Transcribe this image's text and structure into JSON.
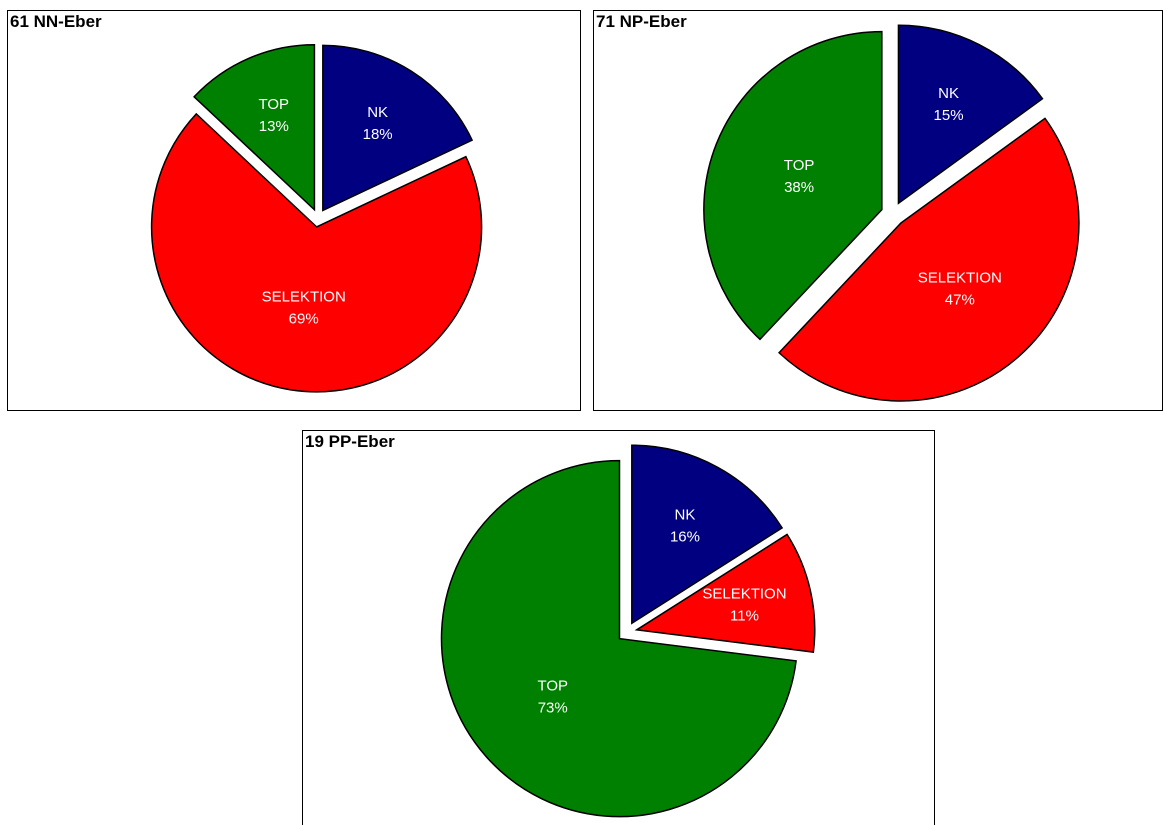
{
  "chart_data": [
    {
      "type": "pie",
      "title": "61 NN-Eber",
      "categories": [
        "NK",
        "SELEKTION",
        "TOP"
      ],
      "values": [
        18,
        69,
        13
      ],
      "value_labels": [
        "18%",
        "69%",
        "13%"
      ],
      "colors": [
        "#000080",
        "#ff0000",
        "#008000"
      ]
    },
    {
      "type": "pie",
      "title": "71 NP-Eber",
      "categories": [
        "NK",
        "SELEKTION",
        "TOP"
      ],
      "values": [
        15,
        47,
        38
      ],
      "value_labels": [
        "15%",
        "47%",
        "38%"
      ],
      "colors": [
        "#000080",
        "#ff0000",
        "#008000"
      ]
    },
    {
      "type": "pie",
      "title": "19 PP-Eber",
      "categories": [
        "NK",
        "SELEKTION",
        "TOP"
      ],
      "values": [
        16,
        11,
        73
      ],
      "value_labels": [
        "16%",
        "11%",
        "73%"
      ],
      "colors": [
        "#000080",
        "#ff0000",
        "#008000"
      ]
    }
  ]
}
